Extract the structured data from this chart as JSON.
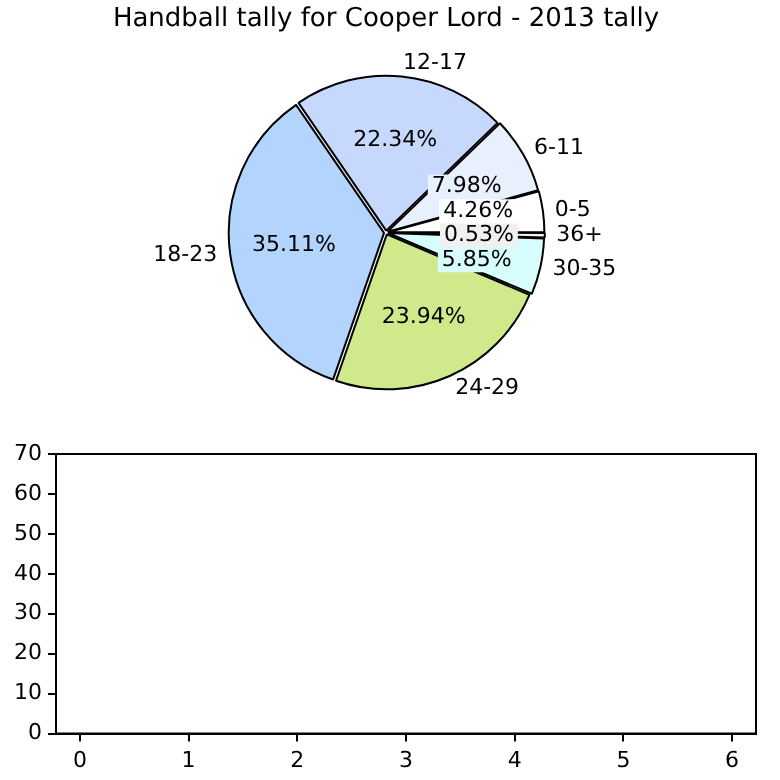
{
  "chart_data": [
    {
      "type": "pie",
      "title": "Handball tally for Cooper Lord - 2013 tally",
      "categories": [
        "36+",
        "30-35",
        "24-29",
        "18-23",
        "12-17",
        "6-11",
        "0-5"
      ],
      "values": [
        0.53,
        5.85,
        23.94,
        35.11,
        22.34,
        7.98,
        4.26
      ],
      "value_labels": [
        "0.53%",
        "5.85%",
        "23.94%",
        "35.11%",
        "22.34%",
        "7.98%",
        "4.26%"
      ],
      "colors": [
        "#f0f0f0",
        "#d8fdff",
        "#d0e98a",
        "#b3d5fd",
        "#c6d9fd",
        "#e8f0fe",
        "#ffffff"
      ]
    },
    {
      "type": "scatter",
      "xlim": [
        -0.22,
        6.22
      ],
      "ylim": [
        0,
        70
      ],
      "xticks": [
        0,
        1,
        2,
        3,
        4,
        5,
        6
      ],
      "yticks": [
        0,
        10,
        20,
        30,
        40,
        50,
        60,
        70
      ]
    }
  ]
}
